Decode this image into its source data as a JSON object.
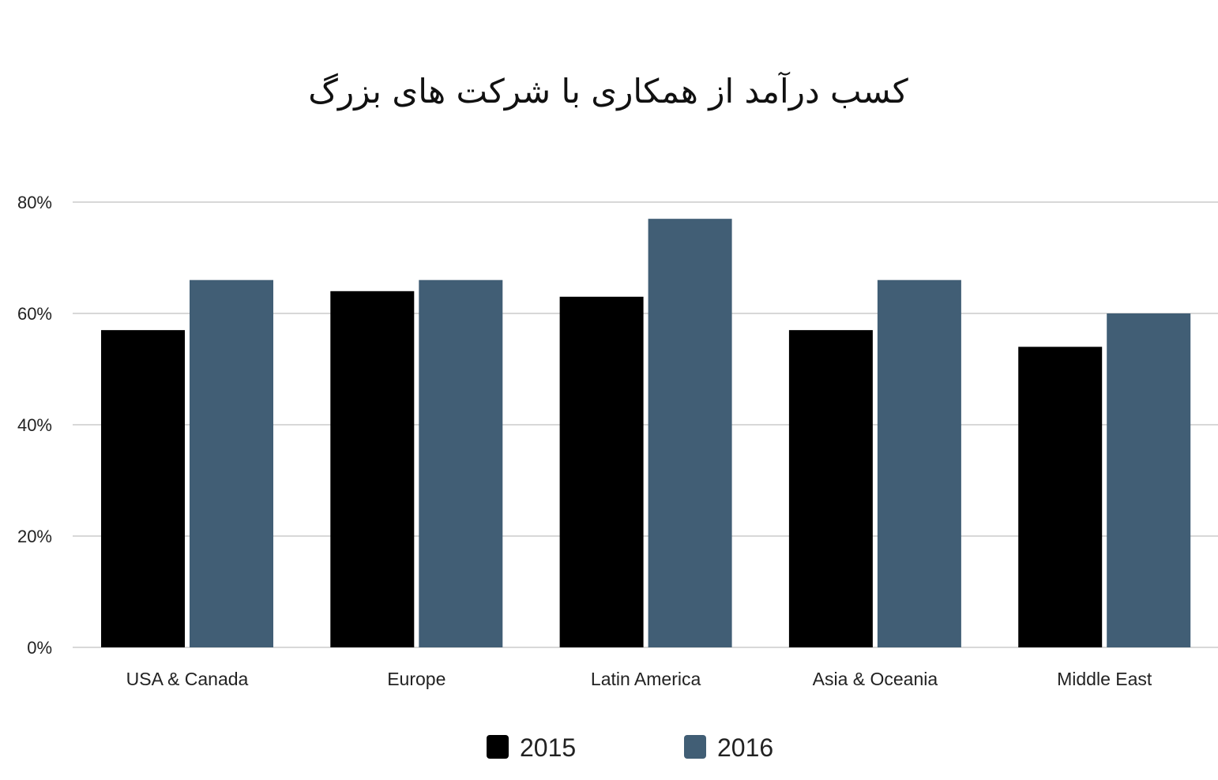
{
  "chart_data": {
    "type": "bar",
    "title": "کسب درآمد از همکاری با شرکت های بزرگ",
    "xlabel": "",
    "ylabel": "",
    "categories": [
      "USA & Canada",
      "Europe",
      "Latin America",
      "Asia & Oceania",
      "Middle East"
    ],
    "series": [
      {
        "name": "2015",
        "color": "#000000",
        "values": [
          57,
          64,
          63,
          57,
          54
        ]
      },
      {
        "name": "2016",
        "color": "#415e75",
        "values": [
          66,
          66,
          77,
          66,
          60
        ]
      }
    ],
    "ylim": [
      0,
      80
    ],
    "yticks": [
      0,
      20,
      40,
      60,
      80
    ],
    "ytick_labels": [
      "0%",
      "20%",
      "40%",
      "60%",
      "80%"
    ],
    "grid": true,
    "legend_position": "bottom-center",
    "colors": {
      "gridline": "#cccccc",
      "axis_text": "#222222"
    }
  }
}
